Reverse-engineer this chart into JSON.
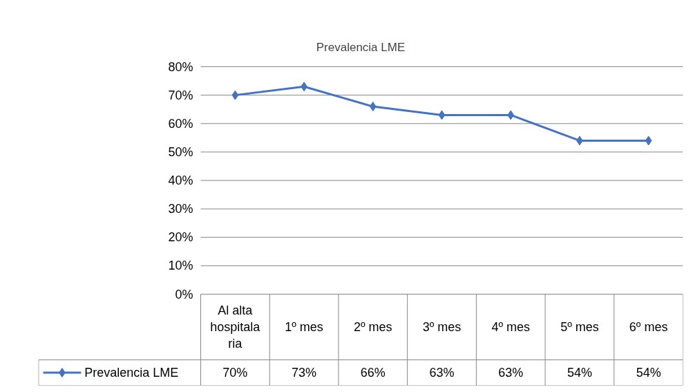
{
  "chart_data": {
    "type": "line",
    "title": "Prevalencia LME",
    "categories": [
      "Al alta hospitalaria",
      "1º mes",
      "2º mes",
      "3º mes",
      "4º mes",
      "5º mes",
      "6º mes"
    ],
    "series": [
      {
        "name": "Prevalencia LME",
        "color": "#4472c4",
        "values": [
          70,
          73,
          66,
          63,
          63,
          54,
          54
        ],
        "value_labels": [
          "70%",
          "73%",
          "66%",
          "63%",
          "63%",
          "54%",
          "54%"
        ]
      }
    ],
    "ylim": [
      0,
      80
    ],
    "yticks": [
      {
        "value": 0,
        "label": "0%"
      },
      {
        "value": 10,
        "label": "10%"
      },
      {
        "value": 20,
        "label": "20%"
      },
      {
        "value": 30,
        "label": "30%"
      },
      {
        "value": 40,
        "label": "40%"
      },
      {
        "value": 50,
        "label": "50%"
      },
      {
        "value": 60,
        "label": "60%"
      },
      {
        "value": 70,
        "label": "70%"
      },
      {
        "value": 80,
        "label": "80%"
      }
    ],
    "grid": "y",
    "marker": "diamond",
    "line_style": "solid",
    "legend": "bottom"
  }
}
